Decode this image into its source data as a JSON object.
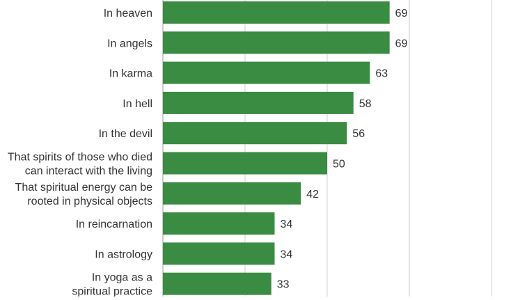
{
  "chart_data": {
    "type": "bar",
    "orientation": "horizontal",
    "title": "",
    "xlabel": "",
    "ylabel": "",
    "xlim": [
      0,
      100
    ],
    "grid": true,
    "legend": "none",
    "bar_color": "#3a8c42",
    "grid_color": "#cfcfcf",
    "label_color": "#333333",
    "categories": [
      "In heaven",
      "In angels",
      "In karma",
      "In hell",
      "In the devil",
      "That spirits of those who died can interact with the living",
      "That spiritual energy can be rooted in physical objects",
      "In reincarnation",
      "In astrology",
      "In yoga as a spiritual practice"
    ],
    "category_lines": [
      [
        "In heaven"
      ],
      [
        "In angels"
      ],
      [
        "In karma"
      ],
      [
        "In hell"
      ],
      [
        "In the devil"
      ],
      [
        "That spirits of those who died",
        "can interact with the living"
      ],
      [
        "That spiritual energy can be",
        "rooted in physical objects"
      ],
      [
        "In reincarnation"
      ],
      [
        "In astrology"
      ],
      [
        "In yoga as a",
        "spiritual practice"
      ]
    ],
    "values": [
      69,
      69,
      63,
      58,
      56,
      50,
      42,
      34,
      34,
      33
    ]
  }
}
